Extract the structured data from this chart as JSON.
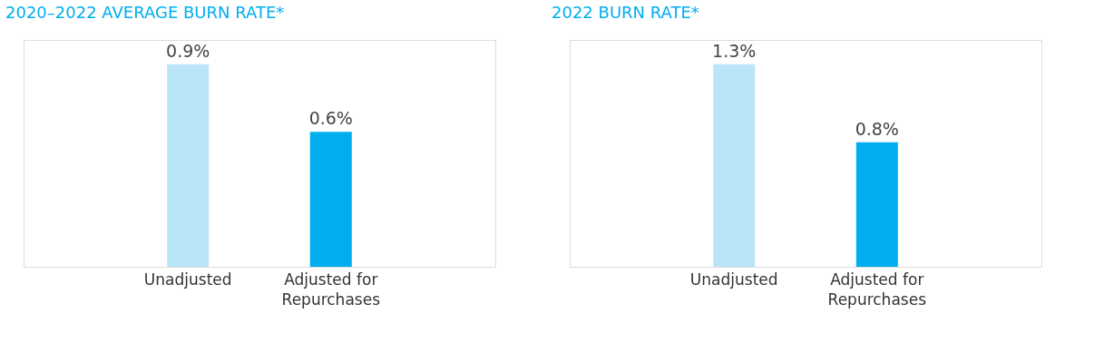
{
  "chart_data": [
    {
      "type": "bar",
      "title": "2020–2022 AVERAGE BURN RATE*",
      "categories": [
        "Unadjusted",
        "Adjusted for\nRepurchases"
      ],
      "values": [
        0.9,
        0.6
      ],
      "colors": [
        "#bae5f8",
        "#00aeef"
      ],
      "value_labels": [
        "0.9%",
        "0.6%"
      ]
    },
    {
      "type": "bar",
      "title": "2022 BURN RATE*",
      "categories": [
        "Unadjusted",
        "Adjusted for\nRepurchases"
      ],
      "values": [
        1.3,
        0.8
      ],
      "colors": [
        "#bae5f8",
        "#00aeef"
      ],
      "value_labels": [
        "1.3%",
        "0.8%"
      ]
    }
  ]
}
